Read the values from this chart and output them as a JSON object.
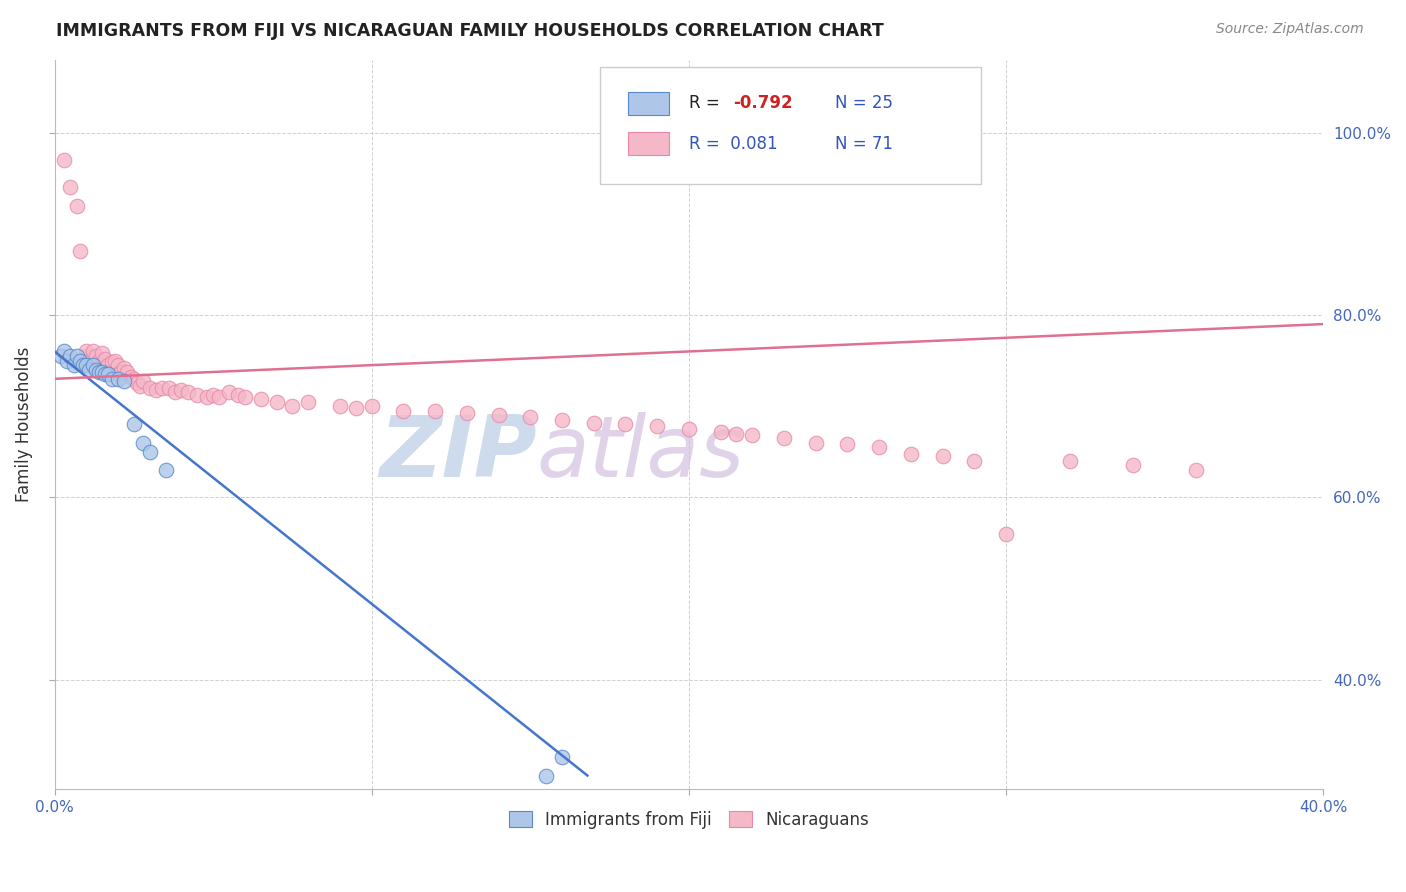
{
  "title": "IMMIGRANTS FROM FIJI VS NICARAGUAN FAMILY HOUSEHOLDS CORRELATION CHART",
  "source": "Source: ZipAtlas.com",
  "ylabel": "Family Households",
  "xlim": [
    0.0,
    0.4
  ],
  "ylim": [
    0.28,
    1.08
  ],
  "x_ticks": [
    0.0,
    0.1,
    0.2,
    0.3,
    0.4
  ],
  "x_tick_labels_show": [
    "0.0%",
    "",
    "",
    "",
    "40.0%"
  ],
  "y_ticks": [
    0.4,
    0.6,
    0.8,
    1.0
  ],
  "y_tick_labels": [
    "40.0%",
    "60.0%",
    "80.0%",
    "100.0%"
  ],
  "legend_labels": [
    "Immigrants from Fiji",
    "Nicaraguans"
  ],
  "legend_r": [
    "-0.792",
    "0.081"
  ],
  "legend_n": [
    "25",
    "71"
  ],
  "blue_fill": "#aec6e8",
  "pink_fill": "#f4b8c8",
  "blue_edge": "#5588cc",
  "pink_edge": "#e888a8",
  "blue_line_color": "#4477cc",
  "pink_line_color": "#e07090",
  "watermark_zip_color": "#c0d0e8",
  "watermark_atlas_color": "#d8c8e8",
  "fiji_x": [
    0.002,
    0.003,
    0.004,
    0.005,
    0.006,
    0.007,
    0.008,
    0.009,
    0.01,
    0.011,
    0.012,
    0.013,
    0.014,
    0.015,
    0.016,
    0.017,
    0.018,
    0.02,
    0.022,
    0.025,
    0.028,
    0.03,
    0.035,
    0.155,
    0.16
  ],
  "fiji_y": [
    0.755,
    0.76,
    0.75,
    0.755,
    0.745,
    0.755,
    0.75,
    0.745,
    0.745,
    0.74,
    0.745,
    0.74,
    0.738,
    0.737,
    0.735,
    0.735,
    0.73,
    0.73,
    0.728,
    0.68,
    0.66,
    0.65,
    0.63,
    0.295,
    0.315
  ],
  "nic_x": [
    0.003,
    0.005,
    0.007,
    0.008,
    0.01,
    0.01,
    0.011,
    0.012,
    0.013,
    0.014,
    0.015,
    0.016,
    0.017,
    0.018,
    0.018,
    0.019,
    0.02,
    0.02,
    0.021,
    0.022,
    0.023,
    0.024,
    0.025,
    0.026,
    0.027,
    0.028,
    0.03,
    0.032,
    0.034,
    0.036,
    0.038,
    0.04,
    0.042,
    0.045,
    0.048,
    0.05,
    0.052,
    0.055,
    0.058,
    0.06,
    0.065,
    0.07,
    0.075,
    0.08,
    0.09,
    0.095,
    0.1,
    0.11,
    0.12,
    0.13,
    0.14,
    0.15,
    0.16,
    0.17,
    0.18,
    0.19,
    0.2,
    0.21,
    0.215,
    0.22,
    0.23,
    0.24,
    0.25,
    0.26,
    0.27,
    0.28,
    0.29,
    0.3,
    0.32,
    0.34,
    0.36
  ],
  "nic_y": [
    0.97,
    0.94,
    0.92,
    0.87,
    0.755,
    0.76,
    0.75,
    0.76,
    0.755,
    0.75,
    0.758,
    0.752,
    0.745,
    0.74,
    0.748,
    0.75,
    0.745,
    0.735,
    0.738,
    0.742,
    0.738,
    0.732,
    0.73,
    0.725,
    0.722,
    0.728,
    0.72,
    0.718,
    0.72,
    0.72,
    0.715,
    0.718,
    0.715,
    0.712,
    0.71,
    0.712,
    0.71,
    0.715,
    0.712,
    0.71,
    0.708,
    0.705,
    0.7,
    0.705,
    0.7,
    0.698,
    0.7,
    0.695,
    0.695,
    0.692,
    0.69,
    0.688,
    0.685,
    0.682,
    0.68,
    0.678,
    0.675,
    0.672,
    0.67,
    0.668,
    0.665,
    0.66,
    0.658,
    0.655,
    0.648,
    0.645,
    0.64,
    0.56,
    0.64,
    0.635,
    0.63
  ],
  "blue_regline_x": [
    0.0,
    0.168
  ],
  "blue_regline_y": [
    0.76,
    0.295
  ],
  "pink_regline_x": [
    0.0,
    0.4
  ],
  "pink_regline_y": [
    0.73,
    0.79
  ]
}
